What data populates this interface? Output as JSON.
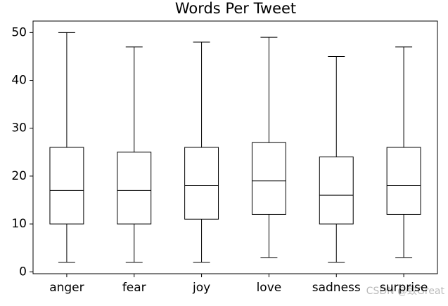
{
  "chart_data": {
    "type": "box",
    "title": "Words Per Tweet",
    "categories": [
      "anger",
      "fear",
      "joy",
      "love",
      "sadness",
      "surprise"
    ],
    "whislo": [
      2,
      2,
      2,
      3,
      2,
      3
    ],
    "q1": [
      10,
      10,
      11,
      12,
      10,
      12
    ],
    "med": [
      17,
      17,
      18,
      19,
      16,
      18
    ],
    "q3": [
      26,
      25,
      26,
      27,
      24,
      26
    ],
    "whishi": [
      50,
      47,
      48,
      49,
      45,
      47
    ],
    "color": "#000000",
    "ylim": [
      -0.4,
      52.4
    ],
    "yticks": [
      0,
      10,
      20,
      30,
      40,
      50
    ],
    "grid": false
  },
  "watermark": "CSDN @致Great"
}
